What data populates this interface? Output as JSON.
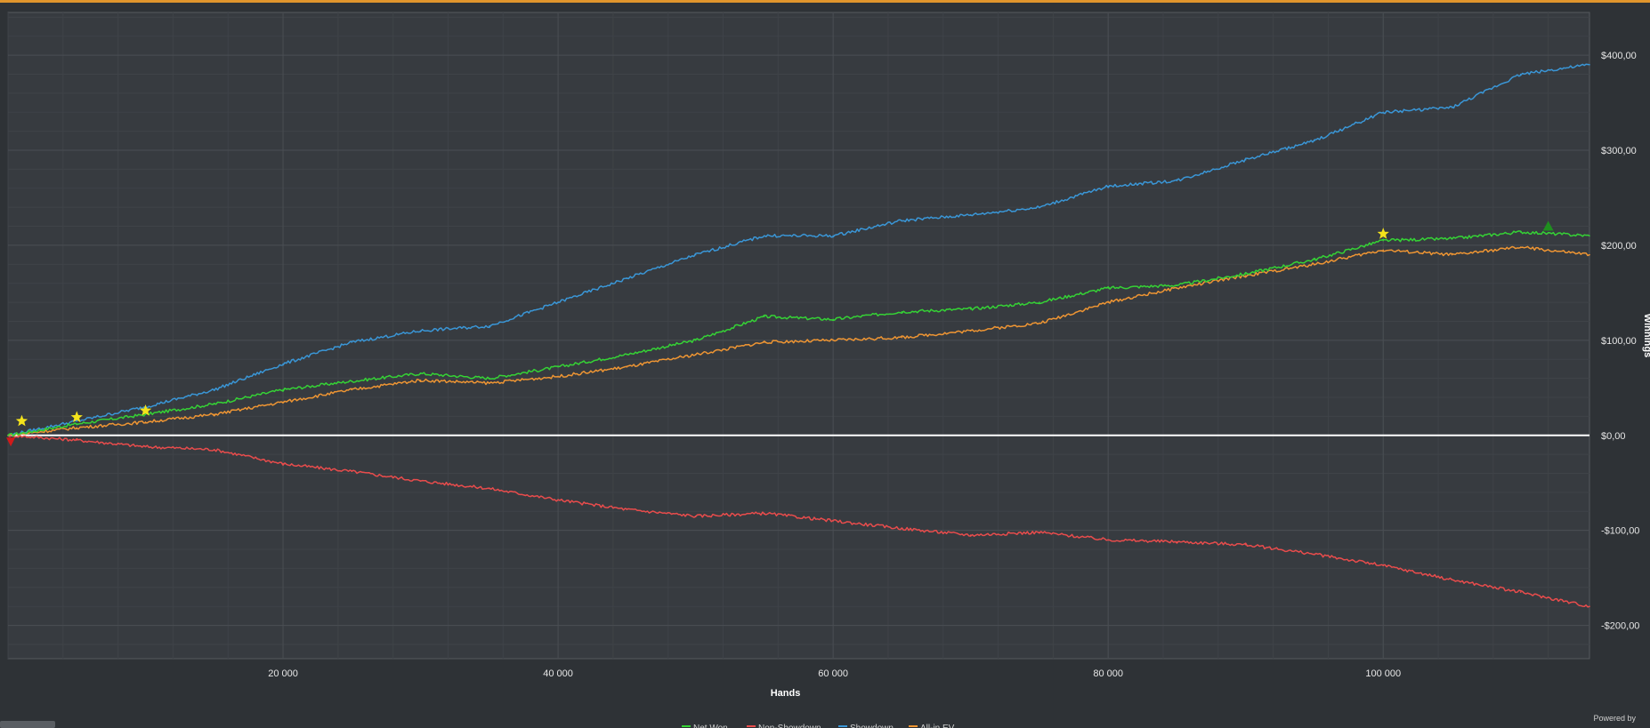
{
  "chart_data": {
    "type": "line",
    "title": "",
    "xlabel": "Hands",
    "ylabel": "Winnings",
    "xlim": [
      0,
      115000
    ],
    "ylim": [
      -235,
      445
    ],
    "x_ticks": [
      20000,
      40000,
      60000,
      80000,
      100000
    ],
    "x_tick_labels": [
      "20 000",
      "40 000",
      "60 000",
      "80 000",
      "100 000"
    ],
    "y_ticks": [
      400,
      300,
      200,
      100,
      0,
      -100,
      -200
    ],
    "y_tick_labels": [
      "$400,00",
      "$300,00",
      "$200,00",
      "$100,00",
      "$0,00",
      "-$100,00",
      "-$200,00"
    ],
    "grid": true,
    "legend_position": "bottom",
    "x": [
      0,
      5000,
      10000,
      15000,
      20000,
      25000,
      30000,
      35000,
      40000,
      45000,
      50000,
      55000,
      60000,
      65000,
      70000,
      75000,
      80000,
      85000,
      90000,
      95000,
      100000,
      105000,
      110000,
      115000
    ],
    "series": [
      {
        "name": "Net Won",
        "color": "#35d235",
        "values": [
          0,
          12,
          22,
          33,
          48,
          57,
          65,
          60,
          72,
          85,
          100,
          125,
          122,
          130,
          133,
          140,
          155,
          158,
          170,
          185,
          205,
          207,
          214,
          210
        ]
      },
      {
        "name": "Non-Showdown",
        "color": "#e84c4c",
        "values": [
          0,
          -5,
          -12,
          -15,
          -30,
          -38,
          -48,
          -56,
          -68,
          -78,
          -85,
          -82,
          -90,
          -98,
          -105,
          -102,
          -110,
          -112,
          -115,
          -125,
          -137,
          -152,
          -165,
          -180
        ]
      },
      {
        "name": "Showdown",
        "color": "#3a96d6",
        "values": [
          0,
          15,
          30,
          48,
          75,
          98,
          110,
          115,
          140,
          165,
          190,
          210,
          210,
          226,
          232,
          240,
          262,
          268,
          290,
          310,
          340,
          345,
          380,
          390
        ]
      },
      {
        "name": "All-in EV",
        "color": "#ee9533",
        "values": [
          0,
          8,
          14,
          22,
          35,
          48,
          58,
          55,
          62,
          72,
          85,
          98,
          100,
          103,
          110,
          118,
          140,
          155,
          168,
          180,
          195,
          190,
          198,
          190
        ]
      }
    ],
    "markers": [
      {
        "type": "star",
        "color": "#f4e31b",
        "x": 1000,
        "y": 15
      },
      {
        "type": "star",
        "color": "#f4e31b",
        "x": 5000,
        "y": 19
      },
      {
        "type": "star",
        "color": "#f4e31b",
        "x": 10000,
        "y": 26
      },
      {
        "type": "star",
        "color": "#f4e31b",
        "x": 100000,
        "y": 212
      },
      {
        "type": "triangle-up",
        "color": "#1f8f1f",
        "x": 112000,
        "y": 220
      },
      {
        "type": "triangle-down",
        "color": "#d11a1a",
        "x": 200,
        "y": -7
      }
    ]
  },
  "footer": {
    "powered_by": "Powered by"
  },
  "colors": {
    "background": "#2e3236",
    "plot_background": "#373b40",
    "grid": "#4a4e53",
    "zero_line": "#ffffff",
    "accent": "#e0952c"
  }
}
